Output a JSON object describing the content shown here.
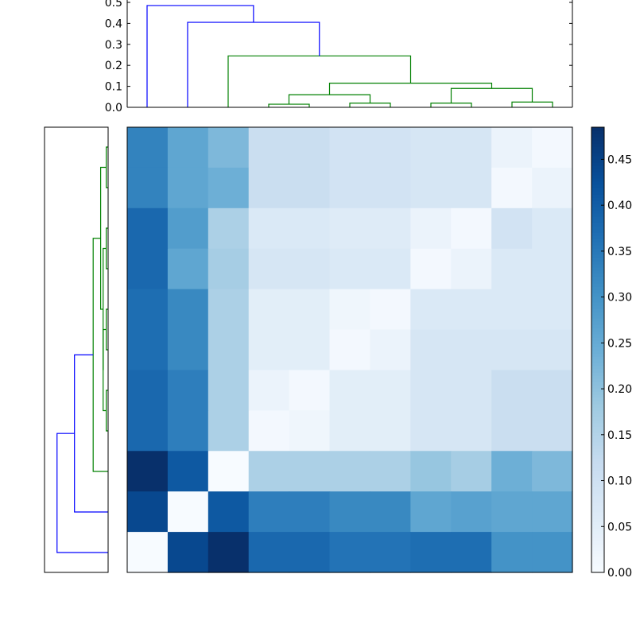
{
  "chart_data": {
    "type": "heatmap",
    "title": "",
    "colormap": {
      "name": "Blues",
      "stops": [
        "#f7fbff",
        "#deebf7",
        "#c6dbef",
        "#9ecae1",
        "#6baed6",
        "#4292c6",
        "#2171b5",
        "#08519c",
        "#08306b"
      ],
      "range": [
        0.0,
        0.485
      ]
    },
    "matrix": [
      [
        0.33,
        0.26,
        0.22,
        0.11,
        0.11,
        0.09,
        0.09,
        0.08,
        0.08,
        0.03,
        0.01
      ],
      [
        0.33,
        0.26,
        0.24,
        0.11,
        0.11,
        0.09,
        0.09,
        0.08,
        0.08,
        0.01,
        0.03
      ],
      [
        0.38,
        0.28,
        0.16,
        0.07,
        0.07,
        0.06,
        0.06,
        0.03,
        0.01,
        0.09,
        0.07
      ],
      [
        0.38,
        0.26,
        0.17,
        0.08,
        0.08,
        0.07,
        0.07,
        0.01,
        0.03,
        0.07,
        0.07
      ],
      [
        0.37,
        0.32,
        0.16,
        0.05,
        0.05,
        0.02,
        0.01,
        0.07,
        0.07,
        0.07,
        0.07
      ],
      [
        0.37,
        0.32,
        0.16,
        0.05,
        0.05,
        0.01,
        0.03,
        0.08,
        0.08,
        0.08,
        0.08
      ],
      [
        0.38,
        0.34,
        0.16,
        0.03,
        0.01,
        0.05,
        0.05,
        0.08,
        0.08,
        0.11,
        0.11
      ],
      [
        0.38,
        0.34,
        0.16,
        0.01,
        0.02,
        0.05,
        0.05,
        0.08,
        0.08,
        0.11,
        0.11
      ],
      [
        0.485,
        0.41,
        0.0,
        0.16,
        0.16,
        0.16,
        0.16,
        0.19,
        0.17,
        0.24,
        0.22
      ],
      [
        0.44,
        0.0,
        0.41,
        0.34,
        0.34,
        0.32,
        0.32,
        0.26,
        0.27,
        0.26,
        0.26
      ],
      [
        0.0,
        0.44,
        0.485,
        0.38,
        0.38,
        0.36,
        0.36,
        0.37,
        0.37,
        0.3,
        0.3
      ]
    ],
    "colorbar": {
      "ticks": [
        0.0,
        0.05,
        0.1,
        0.15,
        0.2,
        0.25,
        0.3,
        0.35,
        0.4,
        0.45
      ],
      "tick_labels": [
        "0.00",
        "0.05",
        "0.10",
        "0.15",
        "0.20",
        "0.25",
        "0.30",
        "0.35",
        "0.40",
        "0.45"
      ]
    },
    "top_dendrogram": {
      "ylim": [
        0.0,
        0.5
      ],
      "ticks": [
        0.0,
        0.1,
        0.2,
        0.3,
        0.4,
        0.5
      ],
      "tick_labels": [
        "0.0",
        "0.1",
        "0.2",
        "0.3",
        "0.4",
        "0.5"
      ],
      "leaf_count": 11,
      "links": [
        {
          "left": 3,
          "right": 4,
          "height": 0.015,
          "color": "#008000"
        },
        {
          "left": 5,
          "right": 6,
          "height": 0.02,
          "color": "#008000"
        },
        {
          "left": 7,
          "right": 8,
          "height": 0.02,
          "color": "#008000"
        },
        {
          "left": 9,
          "right": 10,
          "height": 0.025,
          "color": "#008000"
        },
        {
          "left": 11,
          "right": 12,
          "height": 0.06,
          "color": "#008000"
        },
        {
          "left": 13,
          "right": 14,
          "height": 0.09,
          "color": "#008000"
        },
        {
          "left": 15,
          "right": 16,
          "height": 0.115,
          "color": "#008000"
        },
        {
          "left": 2,
          "right": 17,
          "height": 0.245,
          "color": "#008000"
        },
        {
          "left": 1,
          "right": 18,
          "height": 0.405,
          "color": "#0000ff"
        },
        {
          "left": 0,
          "right": 19,
          "height": 0.485,
          "color": "#0000ff"
        }
      ]
    },
    "left_dendrogram": {
      "leaf_count": 11,
      "max_height": 0.485,
      "links": [
        {
          "left": 0,
          "right": 1,
          "height": 0.015,
          "color": "#008000"
        },
        {
          "left": 2,
          "right": 3,
          "height": 0.015,
          "color": "#008000"
        },
        {
          "left": 4,
          "right": 5,
          "height": 0.015,
          "color": "#008000"
        },
        {
          "left": 6,
          "right": 7,
          "height": 0.015,
          "color": "#008000"
        },
        {
          "left": 13,
          "right": 14,
          "height": 0.04,
          "color": "#008000"
        },
        {
          "left": 12,
          "right": 15,
          "height": 0.04,
          "color": "#008000"
        },
        {
          "left": 11,
          "right": 16,
          "height": 0.06,
          "color": "#008000"
        },
        {
          "left": 17,
          "right": 8,
          "height": 0.12,
          "color": "#008000"
        },
        {
          "left": 18,
          "right": 9,
          "height": 0.27,
          "color": "#0000ff"
        },
        {
          "left": 19,
          "right": 10,
          "height": 0.41,
          "color": "#0000ff"
        }
      ]
    }
  }
}
